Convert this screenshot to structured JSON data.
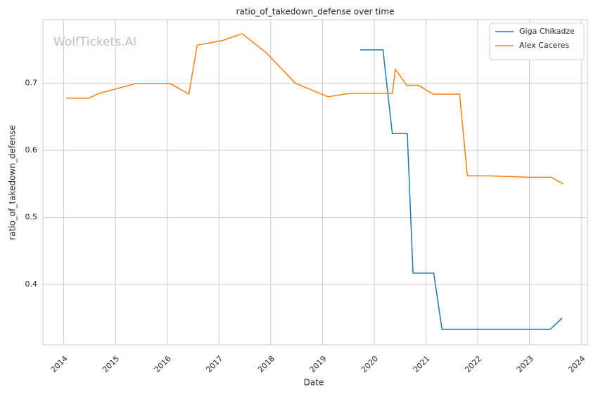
{
  "chart_data": {
    "type": "line",
    "title": "ratio_of_takedown_defense over time",
    "watermark": "WolfTickets.AI",
    "xlabel": "Date",
    "ylabel": "ratio_of_takedown_defense",
    "xlim": [
      2013.6,
      2024.12
    ],
    "xticks": [
      2014,
      2015,
      2016,
      2017,
      2018,
      2019,
      2020,
      2021,
      2022,
      2023,
      2024
    ],
    "ylim": [
      0.31,
      0.795
    ],
    "yticks": [
      0.4,
      0.5,
      0.6,
      0.7
    ],
    "grid": true,
    "legend": "upper right",
    "series": [
      {
        "name": "Giga Chikadze",
        "color": "#1f77b4",
        "x": [
          2019.73,
          2020.17,
          2020.35,
          2020.64,
          2020.75,
          2021.15,
          2021.31,
          2023.4,
          2023.63
        ],
        "values": [
          0.75,
          0.75,
          0.625,
          0.625,
          0.417,
          0.417,
          0.333,
          0.333,
          0.35
        ]
      },
      {
        "name": "Alex Caceres",
        "color": "#ff7f0e",
        "x": [
          2014.05,
          2014.49,
          2014.68,
          2015.41,
          2016.05,
          2016.42,
          2016.58,
          2017.07,
          2017.45,
          2017.91,
          2018.48,
          2019.11,
          2019.53,
          2020.35,
          2020.41,
          2020.63,
          2020.85,
          2021.14,
          2021.65,
          2021.8,
          2022.21,
          2023.0,
          2023.42,
          2023.65
        ],
        "values": [
          0.678,
          0.678,
          0.685,
          0.7,
          0.7,
          0.684,
          0.757,
          0.764,
          0.774,
          0.746,
          0.7,
          0.68,
          0.685,
          0.685,
          0.721,
          0.697,
          0.697,
          0.684,
          0.684,
          0.562,
          0.562,
          0.56,
          0.56,
          0.55
        ]
      }
    ]
  }
}
